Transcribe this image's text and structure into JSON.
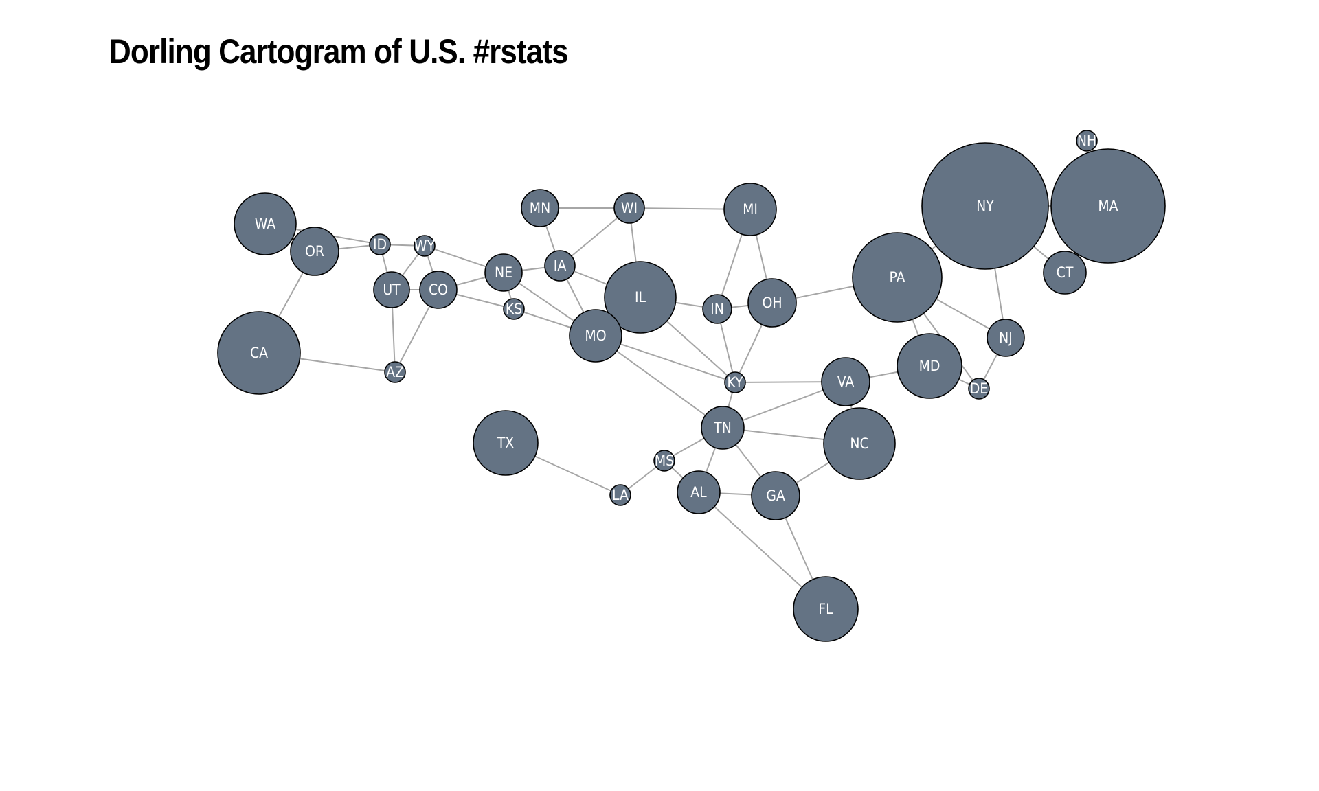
{
  "title": "Dorling Cartogram of U.S. #rstats",
  "colors": {
    "node_fill": "#647384",
    "node_stroke": "#000000",
    "edge": "#a6a6a6",
    "label": "#ffffff"
  },
  "nodes": [
    {
      "id": "WA",
      "label": "WA"
    },
    {
      "id": "OR",
      "label": "OR"
    },
    {
      "id": "CA",
      "label": "CA"
    },
    {
      "id": "ID",
      "label": "ID"
    },
    {
      "id": "WY",
      "label": "WY"
    },
    {
      "id": "UT",
      "label": "UT"
    },
    {
      "id": "CO",
      "label": "CO"
    },
    {
      "id": "AZ",
      "label": "AZ"
    },
    {
      "id": "NE",
      "label": "NE"
    },
    {
      "id": "KS",
      "label": "KS"
    },
    {
      "id": "MN",
      "label": "MN"
    },
    {
      "id": "IA",
      "label": "IA"
    },
    {
      "id": "WI",
      "label": "WI"
    },
    {
      "id": "IL",
      "label": "IL"
    },
    {
      "id": "MO",
      "label": "MO"
    },
    {
      "id": "MI",
      "label": "MI"
    },
    {
      "id": "IN",
      "label": "IN"
    },
    {
      "id": "OH",
      "label": "OH"
    },
    {
      "id": "KY",
      "label": "KY"
    },
    {
      "id": "TN",
      "label": "TN"
    },
    {
      "id": "TX",
      "label": "TX"
    },
    {
      "id": "LA",
      "label": "LA"
    },
    {
      "id": "MS",
      "label": "MS"
    },
    {
      "id": "AL",
      "label": "AL"
    },
    {
      "id": "GA",
      "label": "GA"
    },
    {
      "id": "FL",
      "label": "FL"
    },
    {
      "id": "NC",
      "label": "NC"
    },
    {
      "id": "VA",
      "label": "VA"
    },
    {
      "id": "MD",
      "label": "MD"
    },
    {
      "id": "DE",
      "label": "DE"
    },
    {
      "id": "PA",
      "label": "PA"
    },
    {
      "id": "NJ",
      "label": "NJ"
    },
    {
      "id": "NY",
      "label": "NY"
    },
    {
      "id": "CT",
      "label": "CT"
    },
    {
      "id": "MA",
      "label": "MA"
    },
    {
      "id": "NH",
      "label": "NH"
    }
  ],
  "edges": [
    [
      "WA",
      "OR"
    ],
    [
      "WA",
      "ID"
    ],
    [
      "OR",
      "ID"
    ],
    [
      "OR",
      "CA"
    ],
    [
      "CA",
      "AZ"
    ],
    [
      "ID",
      "WY"
    ],
    [
      "ID",
      "UT"
    ],
    [
      "WY",
      "UT"
    ],
    [
      "WY",
      "CO"
    ],
    [
      "WY",
      "NE"
    ],
    [
      "UT",
      "CO"
    ],
    [
      "UT",
      "AZ"
    ],
    [
      "CO",
      "AZ"
    ],
    [
      "CO",
      "NE"
    ],
    [
      "CO",
      "KS"
    ],
    [
      "NE",
      "KS"
    ],
    [
      "NE",
      "IA"
    ],
    [
      "NE",
      "MO"
    ],
    [
      "KS",
      "MO"
    ],
    [
      "MN",
      "WI"
    ],
    [
      "MN",
      "IA"
    ],
    [
      "IA",
      "WI"
    ],
    [
      "IA",
      "IL"
    ],
    [
      "IA",
      "MO"
    ],
    [
      "WI",
      "IL"
    ],
    [
      "WI",
      "MI"
    ],
    [
      "IL",
      "MO"
    ],
    [
      "IL",
      "IN"
    ],
    [
      "IL",
      "KY"
    ],
    [
      "MO",
      "KY"
    ],
    [
      "MO",
      "TN"
    ],
    [
      "MI",
      "IN"
    ],
    [
      "MI",
      "OH"
    ],
    [
      "IN",
      "OH"
    ],
    [
      "IN",
      "KY"
    ],
    [
      "OH",
      "KY"
    ],
    [
      "OH",
      "PA"
    ],
    [
      "KY",
      "TN"
    ],
    [
      "KY",
      "VA"
    ],
    [
      "TN",
      "VA"
    ],
    [
      "TN",
      "NC"
    ],
    [
      "TN",
      "MS"
    ],
    [
      "TN",
      "AL"
    ],
    [
      "TN",
      "GA"
    ],
    [
      "TX",
      "LA"
    ],
    [
      "LA",
      "MS"
    ],
    [
      "MS",
      "AL"
    ],
    [
      "AL",
      "GA"
    ],
    [
      "AL",
      "FL"
    ],
    [
      "GA",
      "FL"
    ],
    [
      "GA",
      "NC"
    ],
    [
      "NC",
      "VA"
    ],
    [
      "VA",
      "MD"
    ],
    [
      "MD",
      "DE"
    ],
    [
      "MD",
      "PA"
    ],
    [
      "PA",
      "DE"
    ],
    [
      "PA",
      "NJ"
    ],
    [
      "PA",
      "NY"
    ],
    [
      "NJ",
      "NY"
    ],
    [
      "NJ",
      "DE"
    ],
    [
      "NY",
      "CT"
    ],
    [
      "NY",
      "MA"
    ],
    [
      "MA",
      "CT"
    ],
    [
      "MA",
      "NH"
    ]
  ]
}
